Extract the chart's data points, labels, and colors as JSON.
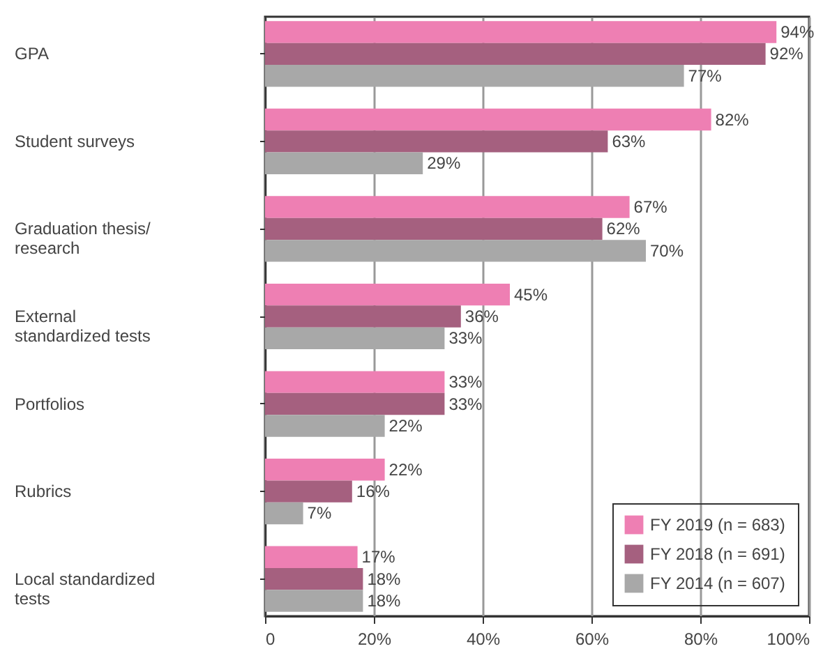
{
  "chart_data": {
    "type": "bar",
    "orientation": "horizontal",
    "categories": [
      "GPA",
      "Student surveys",
      "Graduation thesis/ research",
      "External standardized tests",
      "Portfolios",
      "Rubrics",
      "Local standardized tests"
    ],
    "series": [
      {
        "name": "FY 2019 (n = 683)",
        "color": "#ee7fb3",
        "values": [
          94,
          82,
          67,
          45,
          33,
          22,
          17
        ],
        "value_labels": [
          "94%",
          "82%",
          "67%",
          "45%",
          "33%",
          "22%",
          "17%"
        ]
      },
      {
        "name": "FY 2018 (n = 691)",
        "color": "#a5607f",
        "values": [
          92,
          63,
          62,
          36,
          33,
          16,
          18
        ],
        "value_labels": [
          "92%",
          "63%",
          "62%",
          "36%",
          "33%",
          "16%",
          "18%"
        ]
      },
      {
        "name": "FY 2014 (n = 607)",
        "color": "#a8a8a8",
        "values": [
          77,
          29,
          70,
          33,
          22,
          7,
          18
        ],
        "value_labels": [
          "77%",
          "29%",
          "70%",
          "33%",
          "22%",
          "7%",
          "18%"
        ]
      }
    ],
    "xlim": [
      0,
      100
    ],
    "xticks": [
      {
        "value": 0,
        "label": "0"
      },
      {
        "value": 20,
        "label": "20%"
      },
      {
        "value": 40,
        "label": "40%"
      },
      {
        "value": 60,
        "label": "60%"
      },
      {
        "value": 80,
        "label": "80%"
      },
      {
        "value": 100,
        "label": "100%"
      }
    ],
    "grid": "x",
    "legend": "bottom right"
  }
}
